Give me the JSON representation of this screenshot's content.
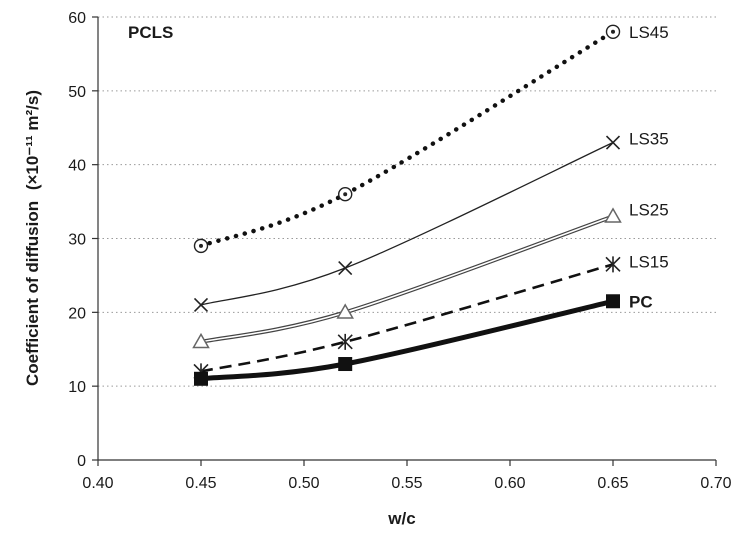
{
  "chart_data": {
    "type": "line",
    "panel_label": "PCLS",
    "xlabel": "w/c",
    "ylabel_main": "Coefficient of diffusion",
    "ylabel_unit": "(×10⁻¹¹ m²/s)",
    "xlim": [
      0.4,
      0.7
    ],
    "ylim": [
      0,
      60
    ],
    "xticks": [
      "0.40",
      "0.45",
      "0.50",
      "0.55",
      "0.60",
      "0.65",
      "0.70"
    ],
    "xtick_values": [
      0.4,
      0.45,
      0.5,
      0.55,
      0.6,
      0.65,
      0.7
    ],
    "yticks": [
      "0",
      "10",
      "20",
      "30",
      "40",
      "50",
      "60"
    ],
    "ytick_values": [
      0,
      10,
      20,
      30,
      40,
      50,
      60
    ],
    "grid": "horizontal-dotted",
    "x": [
      0.45,
      0.52,
      0.65
    ],
    "series": [
      {
        "name": "LS45",
        "values": [
          29,
          36,
          58
        ],
        "marker": "circle-dot",
        "line": "dotted"
      },
      {
        "name": "LS35",
        "values": [
          21,
          26,
          43
        ],
        "marker": "x",
        "line": "thin"
      },
      {
        "name": "LS25",
        "values": [
          16,
          20,
          33
        ],
        "marker": "triangle-open",
        "line": "double"
      },
      {
        "name": "LS15",
        "values": [
          12,
          16,
          26.5
        ],
        "marker": "asterisk",
        "line": "dashed"
      },
      {
        "name": "PC",
        "values": [
          11,
          13,
          21.5
        ],
        "marker": "square-filled",
        "line": "thick"
      }
    ]
  }
}
